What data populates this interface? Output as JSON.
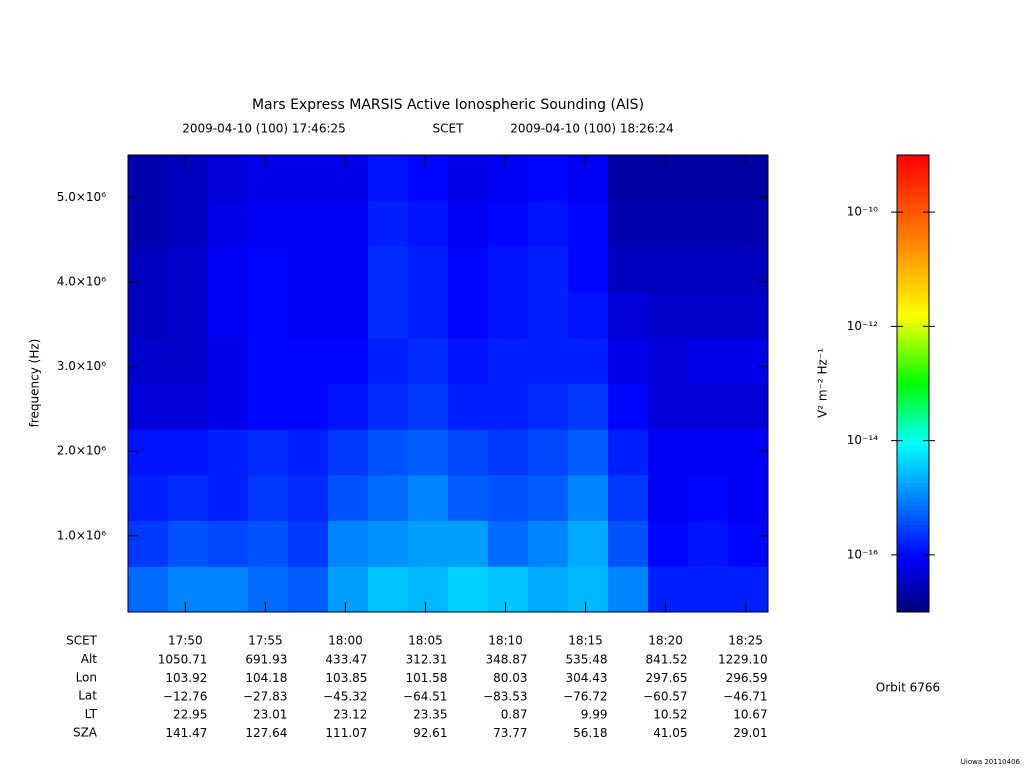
{
  "chart_data": {
    "type": "spectrogram",
    "title": "Mars Express MARSIS Active Ionospheric Sounding (AIS)",
    "subtitle": [
      "2009-04-10 (100) 17:46:25",
      "SCET",
      "2009-04-10 (100) 18:26:24"
    ],
    "ylabel": "frequency (Hz)",
    "colorbar_label": "V² m⁻² Hz⁻¹",
    "xlim": [
      "2009-04-10T17:46:25",
      "2009-04-10T18:26:24"
    ],
    "xticks": [
      {
        "value": "2009-04-10T17:50:00",
        "label": "17:50"
      },
      {
        "value": "2009-04-10T17:55:00",
        "label": "17:55"
      },
      {
        "value": "2009-04-10T18:00:00",
        "label": "18:00"
      },
      {
        "value": "2009-04-10T18:05:00",
        "label": "18:05"
      },
      {
        "value": "2009-04-10T18:10:00",
        "label": "18:10"
      },
      {
        "value": "2009-04-10T18:15:00",
        "label": "18:15"
      },
      {
        "value": "2009-04-10T18:20:00",
        "label": "18:20"
      },
      {
        "value": "2009-04-10T18:25:00",
        "label": "18:25"
      }
    ],
    "ylim": [
      100000,
      5500000
    ],
    "yticks": [
      {
        "value": 1000000,
        "label": "1.0×10⁶"
      },
      {
        "value": 2000000,
        "label": "2.0×10⁶"
      },
      {
        "value": 3000000,
        "label": "3.0×10⁶"
      },
      {
        "value": 4000000,
        "label": "4.0×10⁶"
      },
      {
        "value": 5000000,
        "label": "5.0×10⁶"
      }
    ],
    "zlim": [
      -17,
      -9
    ],
    "zticks": [
      {
        "value": -10,
        "label": "10⁻¹⁰"
      },
      {
        "value": -12,
        "label": "10⁻¹²"
      },
      {
        "value": -14,
        "label": "10⁻¹⁴"
      },
      {
        "value": -16,
        "label": "10⁻¹⁶"
      }
    ],
    "z": [
      [
        -15.2,
        -15.0,
        -15.0,
        -15.2,
        -15.3,
        -14.8,
        -14.5,
        -14.6,
        -14.4,
        -14.5,
        -14.7,
        -14.6,
        -15.0,
        -15.8,
        -15.8,
        -15.8
      ],
      [
        -15.6,
        -15.4,
        -15.5,
        -15.4,
        -15.6,
        -15.0,
        -14.9,
        -14.8,
        -14.8,
        -15.2,
        -15.0,
        -14.7,
        -15.4,
        -16.0,
        -15.9,
        -16.0
      ],
      [
        -15.8,
        -15.7,
        -15.8,
        -15.6,
        -15.7,
        -15.4,
        -15.2,
        -15.0,
        -15.3,
        -15.4,
        -15.3,
        -15.0,
        -15.6,
        -16.1,
        -16.0,
        -16.1
      ],
      [
        -15.9,
        -15.9,
        -15.8,
        -15.7,
        -15.8,
        -15.6,
        -15.4,
        -15.3,
        -15.5,
        -15.6,
        -15.5,
        -15.3,
        -15.8,
        -16.1,
        -16.1,
        -16.1
      ],
      [
        -16.3,
        -16.3,
        -16.2,
        -16.0,
        -16.0,
        -15.9,
        -15.7,
        -15.6,
        -15.8,
        -15.8,
        -15.7,
        -15.6,
        -16.0,
        -16.3,
        -16.3,
        -16.3
      ],
      [
        -16.4,
        -16.4,
        -16.2,
        -16.0,
        -16.0,
        -16.0,
        -15.8,
        -15.7,
        -15.9,
        -15.8,
        -15.8,
        -15.8,
        -16.2,
        -16.3,
        -16.2,
        -16.2
      ],
      [
        -16.5,
        -16.4,
        -16.1,
        -16.0,
        -16.1,
        -16.1,
        -15.7,
        -15.8,
        -16.0,
        -15.9,
        -15.8,
        -15.9,
        -16.3,
        -16.4,
        -16.4,
        -16.4
      ],
      [
        -16.5,
        -16.4,
        -16.1,
        -16.0,
        -16.1,
        -16.1,
        -15.7,
        -15.8,
        -16.0,
        -15.9,
        -15.8,
        -16.0,
        -16.5,
        -16.5,
        -16.5,
        -16.5
      ],
      [
        -16.6,
        -16.5,
        -16.2,
        -16.1,
        -16.1,
        -16.1,
        -15.8,
        -15.9,
        -16.1,
        -16.0,
        -15.9,
        -16.0,
        -16.6,
        -16.6,
        -16.6,
        -16.6
      ],
      [
        -16.6,
        -16.5,
        -16.3,
        -16.2,
        -16.2,
        -16.2,
        -15.9,
        -16.0,
        -16.2,
        -16.1,
        -16.0,
        -16.1,
        -16.7,
        -16.7,
        -16.7,
        -16.7
      ]
    ],
    "ephemeris": {
      "labels": [
        "SCET",
        "Alt",
        "Lon",
        "Lat",
        "LT",
        "SZA"
      ],
      "rows": [
        [
          "1050.71",
          "691.93",
          "433.47",
          "312.31",
          "348.87",
          "535.48",
          "841.52",
          "1229.10"
        ],
        [
          "103.92",
          "104.18",
          "103.85",
          "101.58",
          "80.03",
          "304.43",
          "297.65",
          "296.59"
        ],
        [
          "−12.76",
          "−27.83",
          "−45.32",
          "−64.51",
          "−83.53",
          "−76.72",
          "−60.57",
          "−46.71"
        ],
        [
          "22.95",
          "23.01",
          "23.12",
          "23.35",
          "0.87",
          "9.99",
          "10.52",
          "10.67"
        ],
        [
          "141.47",
          "127.64",
          "111.07",
          "92.61",
          "73.77",
          "56.18",
          "41.05",
          "29.01"
        ]
      ]
    },
    "orbit": "Orbit 6766",
    "footer": "Uiowa 20110406"
  }
}
